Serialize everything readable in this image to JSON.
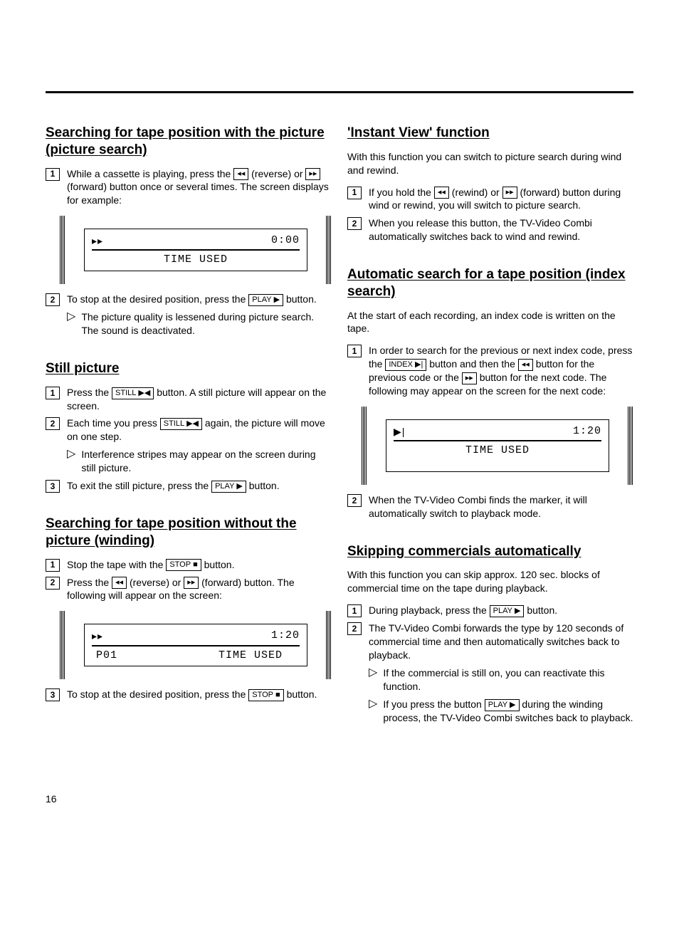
{
  "page_number": "16",
  "left": {
    "s1": {
      "title": "Searching for tape position with the picture (picture search)",
      "step1_a": "While a cassette is playing, press the ",
      "step1_b": "(reverse) or ",
      "step1_c": "(forward) button once or several times. The screen displays for example:",
      "display1_time": "0:00",
      "display1_label": "TIME USED",
      "step2_a": "To stop at the desired position, press the ",
      "step2_b": " button.",
      "note1": "The picture quality is lessened during picture search. The sound is deactivated."
    },
    "s2": {
      "title": "Still picture",
      "step1_a": "Press the ",
      "step1_b": " button. A still picture will appear on the screen.",
      "step2_a": "Each time you press ",
      "step2_b": " again, the picture will move on one step.",
      "note1": "Interference stripes may appear on the screen during still picture.",
      "step3_a": "To exit the still picture, press the ",
      "step3_b": " button."
    },
    "s3": {
      "title": "Searching for tape position without the picture (winding)",
      "step1_a": "Stop the tape with the ",
      "step1_b": " button.",
      "step2_a": "Press the ",
      "step2_b": "(reverse) or ",
      "step2_c": "(forward) button. The following will appear on the screen:",
      "display2_time": "1:20",
      "display2_left": "P01",
      "display2_label": "TIME USED",
      "step3_a": "To stop at the desired position, press the ",
      "step3_b": " button."
    }
  },
  "right": {
    "s4": {
      "title": "'Instant View' function",
      "intro": "With this function you can switch to picture search during wind and rewind.",
      "step1_a": "If you hold the ",
      "step1_b": "(rewind) or ",
      "step1_c": "(forward) button during wind or rewind, you will switch to picture search.",
      "step2": "When you release this button, the TV-Video Combi automatically switches back to wind and rewind."
    },
    "s5": {
      "title": "Automatic search for a tape position (index search)",
      "intro": "At the start of each recording, an index code is written on the tape.",
      "step1_a": "In order to search for the previous or next index code, press the ",
      "step1_b": " button and then the ",
      "step1_c": " button for the previous code or the ",
      "step1_d": " button for the next code. The following may appear on the screen for the next code:",
      "display3_time": "1:20",
      "display3_label": "TIME USED",
      "step2": "When the TV-Video Combi finds the marker, it will automatically switch to playback mode."
    },
    "s6": {
      "title": "Skipping commercials automatically",
      "intro": "With this function you can skip approx. 120 sec. blocks of commercial time on the tape during playback.",
      "step1_a": "During playback, press the ",
      "step1_b": " button.",
      "step2": "The TV-Video Combi forwards the type by 120 seconds of commercial time and then automatically switches back to playback.",
      "note1": "If the commercial is still on, you can reactivate this function.",
      "note2_a": "If you press the button ",
      "note2_b": " during the winding process, the TV-Video Combi switches back to playback."
    }
  },
  "buttons": {
    "play": "PLAY",
    "still": "STILL",
    "stop": "STOP",
    "index": "INDEX"
  }
}
